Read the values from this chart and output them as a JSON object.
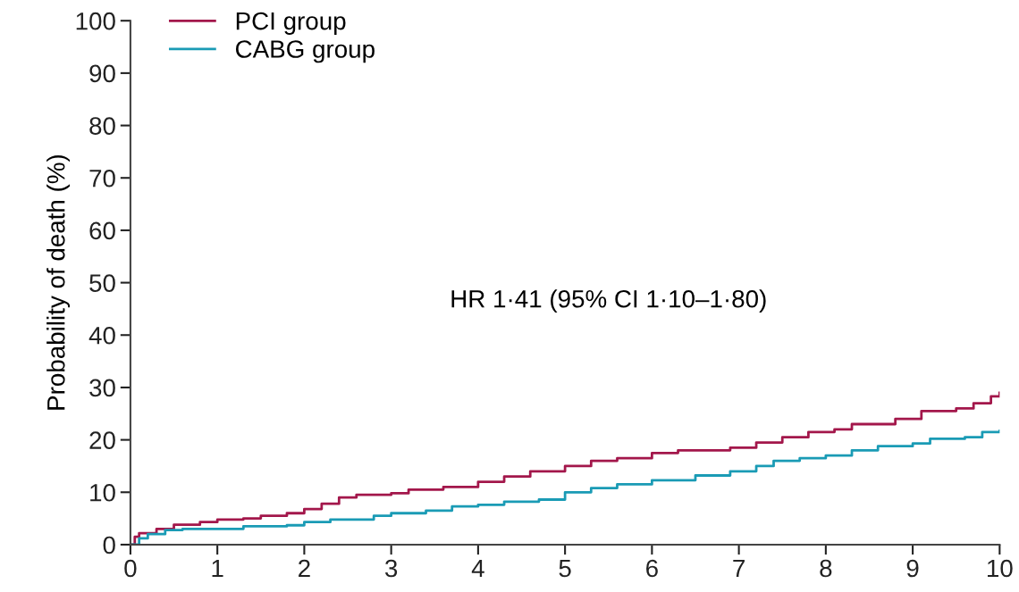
{
  "chart_data": {
    "type": "step",
    "ylabel": "Probability of death (%)",
    "xlim": [
      0,
      10
    ],
    "ylim": [
      0,
      100
    ],
    "xticks": [
      0,
      1,
      2,
      3,
      4,
      5,
      6,
      7,
      8,
      9,
      10
    ],
    "yticks": [
      0,
      10,
      20,
      30,
      40,
      50,
      60,
      70,
      80,
      90,
      100
    ],
    "grid": false,
    "legend": "top left",
    "marker": "none",
    "line_style": "solid",
    "annotations": [
      "HR 1·41 (95% CI 1·10–1·80)"
    ],
    "series": [
      {
        "name": "PCI group",
        "color": "#a3174b",
        "x": [
          0,
          0.05,
          0.1,
          0.3,
          0.5,
          0.8,
          1,
          1.3,
          1.5,
          1.8,
          2,
          2.2,
          2.4,
          2.6,
          3,
          3.2,
          3.6,
          4,
          4.3,
          4.6,
          5,
          5.3,
          5.6,
          6,
          6.3,
          6.9,
          7.2,
          7.5,
          7.8,
          8.1,
          8.3,
          8.8,
          9.1,
          9.5,
          9.7,
          9.9,
          10
        ],
        "values": [
          0,
          1.5,
          2.2,
          3,
          3.8,
          4.3,
          4.8,
          5,
          5.5,
          6,
          6.8,
          7.8,
          9,
          9.5,
          9.8,
          10.5,
          11,
          12,
          13,
          14,
          15,
          16,
          16.5,
          17.5,
          18,
          18.5,
          19.5,
          20.5,
          21.5,
          22,
          23,
          24,
          25.5,
          26,
          27,
          28.3,
          29
        ]
      },
      {
        "name": "CABG group",
        "color": "#1a9bb5",
        "x": [
          0,
          0.1,
          0.2,
          0.4,
          0.6,
          1.2,
          1.3,
          1.8,
          2,
          2.3,
          2.8,
          3,
          3.4,
          3.7,
          4,
          4.3,
          4.7,
          5,
          5.3,
          5.6,
          6,
          6.5,
          6.9,
          7.2,
          7.4,
          7.7,
          8,
          8.3,
          8.6,
          9,
          9.2,
          9.6,
          9.8,
          10
        ],
        "values": [
          0,
          1.2,
          2,
          2.8,
          3,
          3,
          3.5,
          3.7,
          4.3,
          4.8,
          5.5,
          6,
          6.5,
          7.3,
          7.6,
          8.2,
          8.6,
          10,
          10.8,
          11.5,
          12.3,
          13.2,
          14,
          15,
          16,
          16.5,
          17,
          18,
          18.8,
          19.3,
          20.2,
          20.5,
          21.5,
          21.7
        ]
      }
    ]
  }
}
